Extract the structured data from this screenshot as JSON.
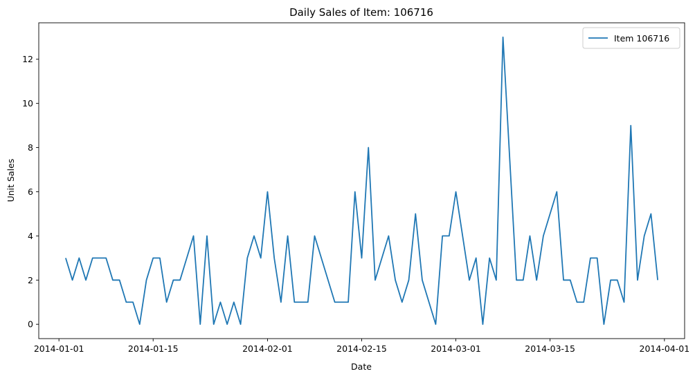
{
  "chart_data": {
    "type": "line",
    "title": "Daily Sales of Item: 106716",
    "xlabel": "Date",
    "ylabel": "Unit Sales",
    "legend_position": "top-right",
    "grid": false,
    "series": [
      {
        "name": "Item 106716",
        "color": "#1f77b4",
        "x": [
          "2014-01-02",
          "2014-01-03",
          "2014-01-04",
          "2014-01-05",
          "2014-01-06",
          "2014-01-07",
          "2014-01-08",
          "2014-01-09",
          "2014-01-10",
          "2014-01-11",
          "2014-01-12",
          "2014-01-13",
          "2014-01-14",
          "2014-01-15",
          "2014-01-16",
          "2014-01-17",
          "2014-01-18",
          "2014-01-19",
          "2014-01-20",
          "2014-01-21",
          "2014-01-22",
          "2014-01-23",
          "2014-01-24",
          "2014-01-25",
          "2014-01-26",
          "2014-01-27",
          "2014-01-28",
          "2014-01-29",
          "2014-01-30",
          "2014-01-31",
          "2014-02-01",
          "2014-02-02",
          "2014-02-03",
          "2014-02-04",
          "2014-02-05",
          "2014-02-06",
          "2014-02-07",
          "2014-02-08",
          "2014-02-11",
          "2014-02-12",
          "2014-02-13",
          "2014-02-14",
          "2014-02-15",
          "2014-02-16",
          "2014-02-17",
          "2014-02-19",
          "2014-02-20",
          "2014-02-21",
          "2014-02-22",
          "2014-02-23",
          "2014-02-24",
          "2014-02-26",
          "2014-02-27",
          "2014-02-28",
          "2014-03-01",
          "2014-03-03",
          "2014-03-04",
          "2014-03-05",
          "2014-03-06",
          "2014-03-07",
          "2014-03-08",
          "2014-03-10",
          "2014-03-11",
          "2014-03-12",
          "2014-03-13",
          "2014-03-14",
          "2014-03-16",
          "2014-03-17",
          "2014-03-18",
          "2014-03-19",
          "2014-03-20",
          "2014-03-21",
          "2014-03-22",
          "2014-03-23",
          "2014-03-24",
          "2014-03-25",
          "2014-03-26",
          "2014-03-27",
          "2014-03-28",
          "2014-03-29",
          "2014-03-30",
          "2014-03-31"
        ],
        "values": [
          3,
          2,
          3,
          2,
          3,
          3,
          3,
          2,
          2,
          1,
          1,
          0,
          2,
          3,
          3,
          1,
          2,
          2,
          3,
          4,
          0,
          4,
          0,
          1,
          0,
          1,
          0,
          3,
          4,
          3,
          6,
          3,
          1,
          4,
          1,
          1,
          1,
          4,
          1,
          1,
          1,
          6,
          3,
          8,
          2,
          4,
          2,
          1,
          2,
          5,
          2,
          0,
          4,
          4,
          6,
          2,
          3,
          0,
          3,
          2,
          13,
          2,
          2,
          4,
          2,
          4,
          6,
          2,
          2,
          1,
          1,
          3,
          3,
          0,
          2,
          2,
          1,
          9,
          2,
          4,
          5,
          2
        ]
      }
    ],
    "x_ticks": [
      "2014-01-01",
      "2014-01-15",
      "2014-02-01",
      "2014-02-15",
      "2014-03-01",
      "2014-03-15",
      "2014-04-01"
    ],
    "y_ticks": [
      0,
      2,
      4,
      6,
      8,
      10,
      12
    ],
    "xlim": [
      "2013-12-29",
      "2014-04-04"
    ],
    "ylim": [
      -0.65,
      13.65
    ]
  }
}
